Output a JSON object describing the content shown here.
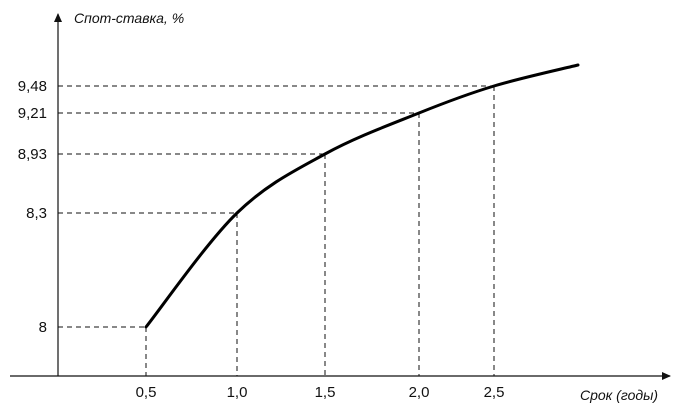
{
  "chart_data": {
    "type": "line",
    "title": "",
    "ylabel": "Спот-ставка, %",
    "xlabel": "Срок (годы)",
    "x_ticks": [
      "0,5",
      "1,0",
      "1,5",
      "2,0",
      "2,5"
    ],
    "y_ticks": [
      "8",
      "8,3",
      "8,93",
      "9,21",
      "9,48"
    ],
    "series": [
      {
        "x": [
          0.5,
          1.0,
          1.5,
          2.0,
          2.5,
          2.95
        ],
        "y": [
          8.0,
          8.3,
          8.93,
          9.21,
          9.48,
          9.62
        ]
      }
    ],
    "guide_points": [
      {
        "x": 0.5,
        "y": 8.0
      },
      {
        "x": 1.0,
        "y": 8.3
      },
      {
        "x": 1.5,
        "y": 8.93
      },
      {
        "x": 2.0,
        "y": 9.21
      },
      {
        "x": 2.5,
        "y": 9.48
      }
    ],
    "grid": false,
    "legend": "none"
  }
}
